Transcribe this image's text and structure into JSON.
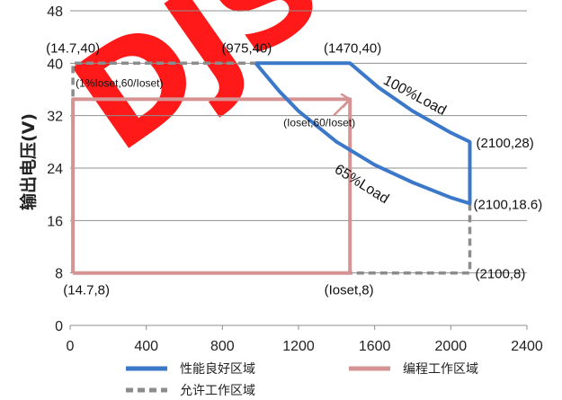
{
  "chart_data": {
    "type": "line",
    "ylabel": "输出电压(V)",
    "xlabel": "",
    "xlim": [
      0,
      2400
    ],
    "ylim": [
      0,
      48
    ],
    "x_ticks": [
      0,
      400,
      800,
      1200,
      1600,
      2000,
      2400
    ],
    "y_ticks": [
      0,
      8,
      16,
      24,
      32,
      40,
      48
    ],
    "grid": "horizontal",
    "legend_placement": "bottom",
    "watermark": "DJS",
    "colors": {
      "good": "#3b78c9",
      "allowed": "#8c8c8c",
      "program": "#d69393",
      "watermark": "#ff0000"
    },
    "series": [
      {
        "name": "性能良好区域",
        "style": "solid",
        "points": [
          [
            975,
            40
          ],
          [
            1470,
            40
          ],
          [
            1620,
            36.3
          ],
          [
            1800,
            32.7
          ],
          [
            2000,
            29.4
          ],
          [
            2100,
            28
          ],
          [
            2100,
            18.6
          ],
          [
            2000,
            19.5
          ],
          [
            1800,
            21.8
          ],
          [
            1600,
            24.5
          ],
          [
            1400,
            28
          ],
          [
            1200,
            32.7
          ],
          [
            1100,
            35.7
          ],
          [
            975,
            40
          ]
        ]
      },
      {
        "name": "允许工作区域",
        "style": "dashed",
        "points": [
          [
            2100,
            18.6
          ],
          [
            2100,
            8
          ],
          [
            14.7,
            8
          ],
          [
            14.7,
            40
          ],
          [
            975,
            40
          ]
        ]
      },
      {
        "name": "编程工作区域",
        "style": "solid",
        "points": [
          [
            14.7,
            8
          ],
          [
            14.7,
            34.5
          ],
          [
            1470,
            34.5
          ],
          [
            1470,
            8
          ],
          [
            14.7,
            8
          ]
        ]
      }
    ],
    "annotations": [
      {
        "text": "(14.7,40)",
        "x": 14.7,
        "y": 40,
        "style": "ann",
        "anchor": "middle",
        "dx": 0,
        "dy": -12
      },
      {
        "text": "(975,40)",
        "x": 975,
        "y": 40,
        "style": "ann",
        "anchor": "middle",
        "dx": -10,
        "dy": -12
      },
      {
        "text": "(1470,40)",
        "x": 1470,
        "y": 40,
        "style": "ann",
        "anchor": "middle",
        "dx": 3,
        "dy": -12
      },
      {
        "text": "(1%Ioset,60/Ioset)",
        "x": 14.7,
        "y": 40,
        "style": "ann-small",
        "anchor": "start",
        "dx": 3,
        "dy": 26
      },
      {
        "text": "(Ioset,60/Ioset)",
        "x": 1470,
        "y": 34.5,
        "style": "ann-small",
        "anchor": "end",
        "dx": 6,
        "dy": 30
      },
      {
        "text": "(2100,28)",
        "x": 2100,
        "y": 28,
        "style": "ann",
        "anchor": "start",
        "dx": 7,
        "dy": 6
      },
      {
        "text": "(2100,18.6)",
        "x": 2100,
        "y": 18.6,
        "style": "ann",
        "anchor": "start",
        "dx": 4,
        "dy": 6
      },
      {
        "text": "(2100,8)",
        "x": 2100,
        "y": 8,
        "style": "ann",
        "anchor": "start",
        "dx": 6,
        "dy": 6
      },
      {
        "text": "(14.7,8)",
        "x": 14.7,
        "y": 8,
        "style": "ann",
        "anchor": "middle",
        "dx": 15,
        "dy": 24
      },
      {
        "text": "(Ioset,8)",
        "x": 1470,
        "y": 8,
        "style": "ann",
        "anchor": "middle",
        "dx": -1,
        "dy": 24
      },
      {
        "text": "100%Load",
        "x": 1800,
        "y": 34.5,
        "style": "ann-load",
        "anchor": "middle",
        "dx": 0,
        "dy": 0,
        "rotate": 28
      },
      {
        "text": "65%Load",
        "x": 1520,
        "y": 21,
        "style": "ann-load",
        "anchor": "middle",
        "dx": 0,
        "dy": 0,
        "rotate": 32
      }
    ]
  }
}
